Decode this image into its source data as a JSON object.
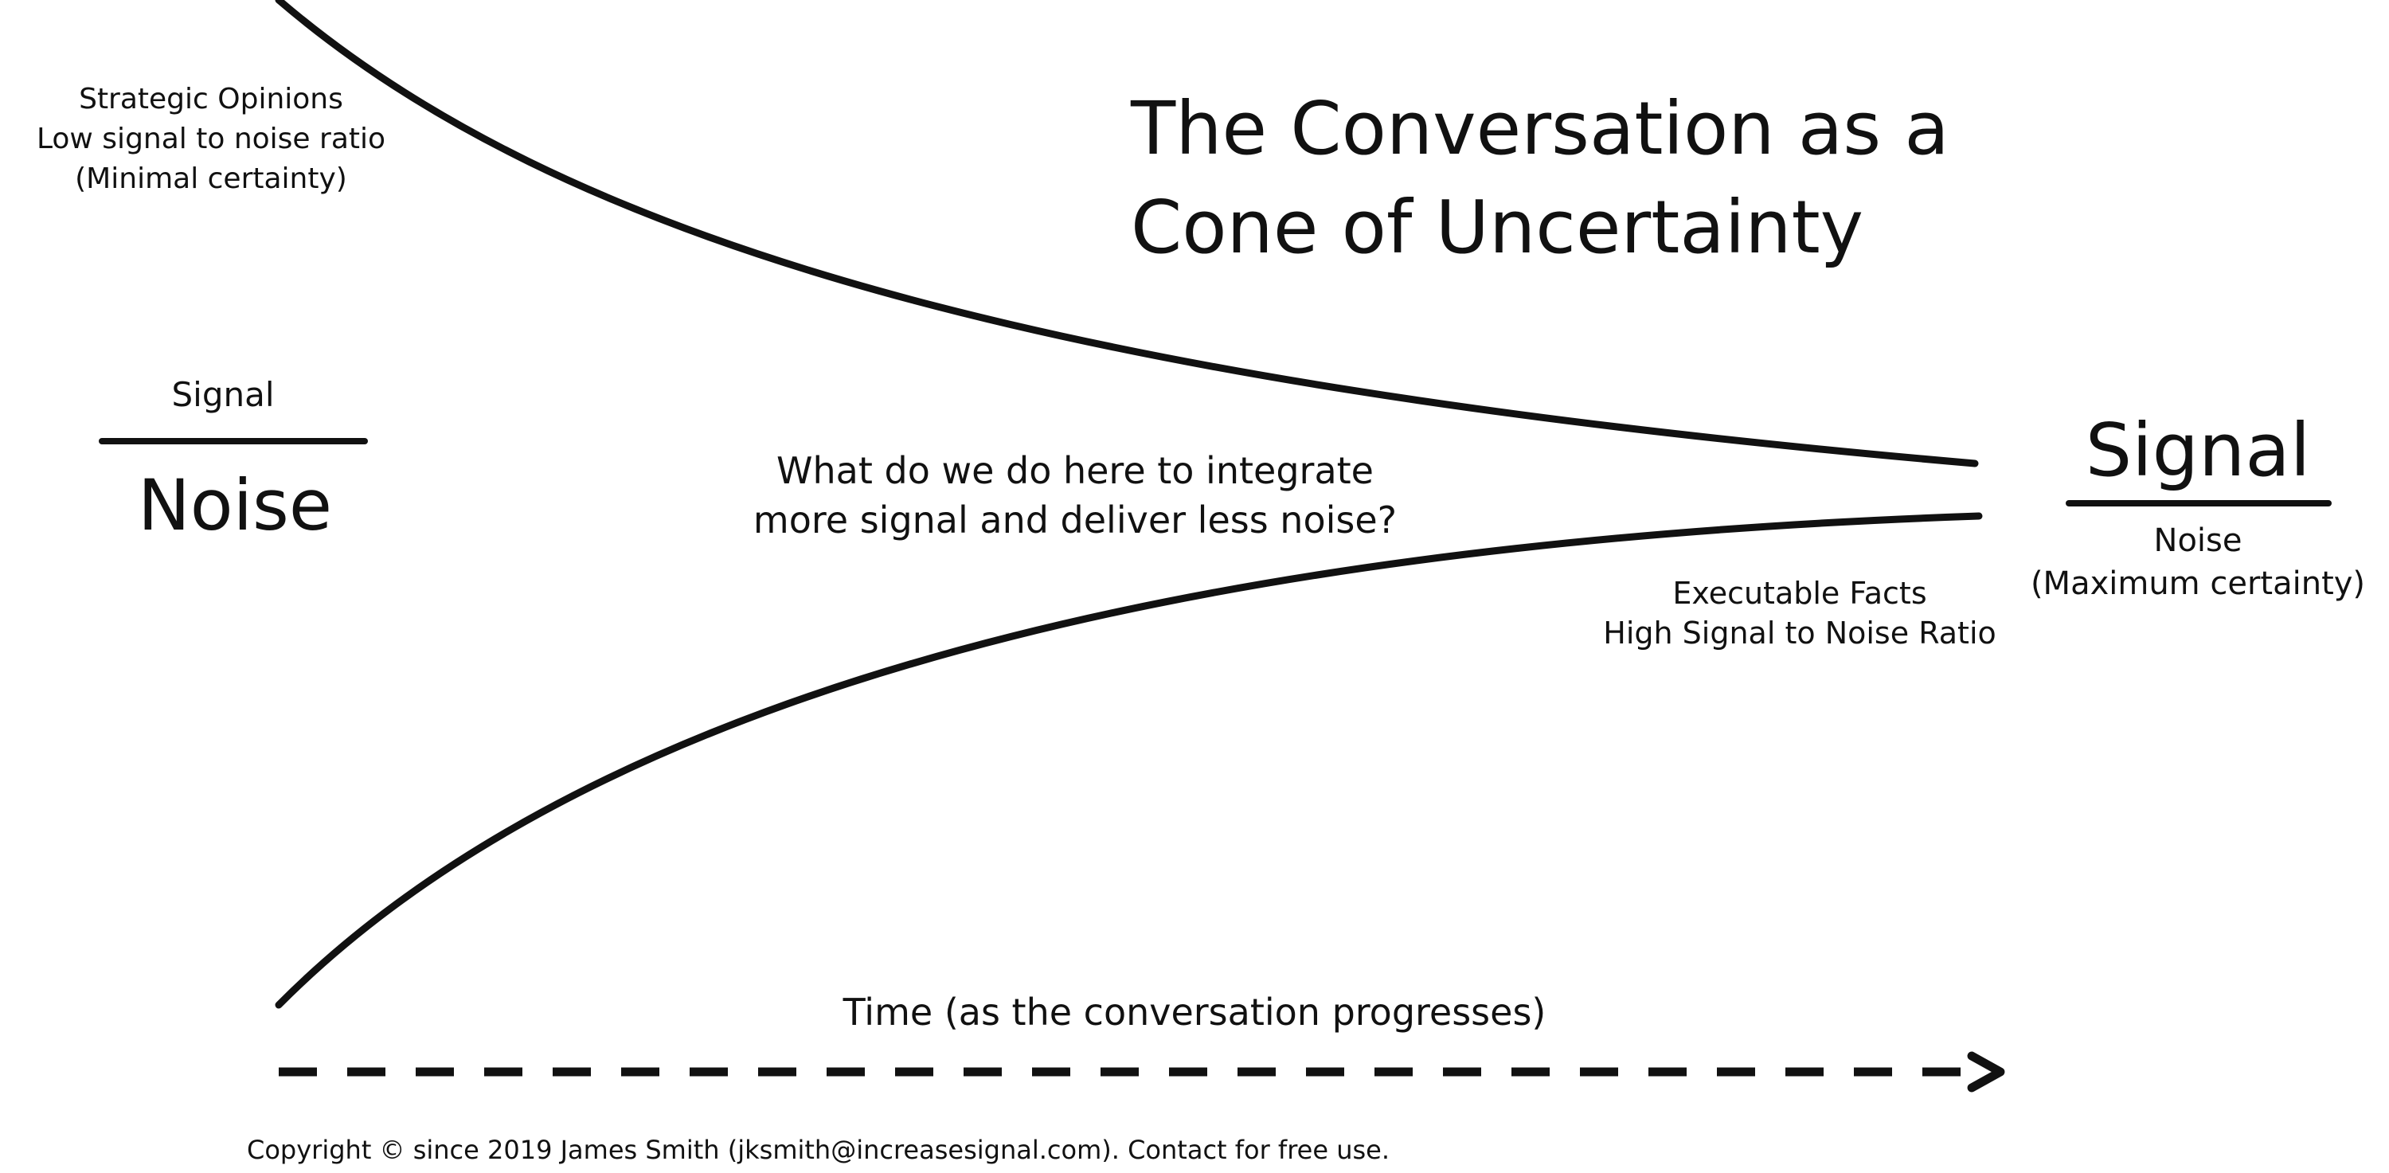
{
  "title": {
    "line1": "The Conversation as a",
    "line2": "Cone of Uncertainty"
  },
  "left_annotation": {
    "line1": "Strategic Opinions",
    "line2": "Low signal to noise ratio",
    "line3": "(Minimal certainty)"
  },
  "left_ratio": {
    "numerator": "Signal",
    "denominator": "Noise"
  },
  "question": {
    "line1": "What do we do here to integrate",
    "line2": "more signal and deliver less noise?"
  },
  "right_ratio": {
    "numerator": "Signal",
    "denominator": "Noise",
    "note": "(Maximum certainty)"
  },
  "right_annotation": {
    "line1": "Executable Facts",
    "line2": "High Signal to Noise Ratio"
  },
  "time_axis": {
    "label": "Time (as the conversation progresses)"
  },
  "copyright": "Copyright © since 2019 James Smith (jksmith@increasesignal.com). Contact for free use.",
  "colors": {
    "ink": "#111111",
    "background": "#ffffff"
  }
}
